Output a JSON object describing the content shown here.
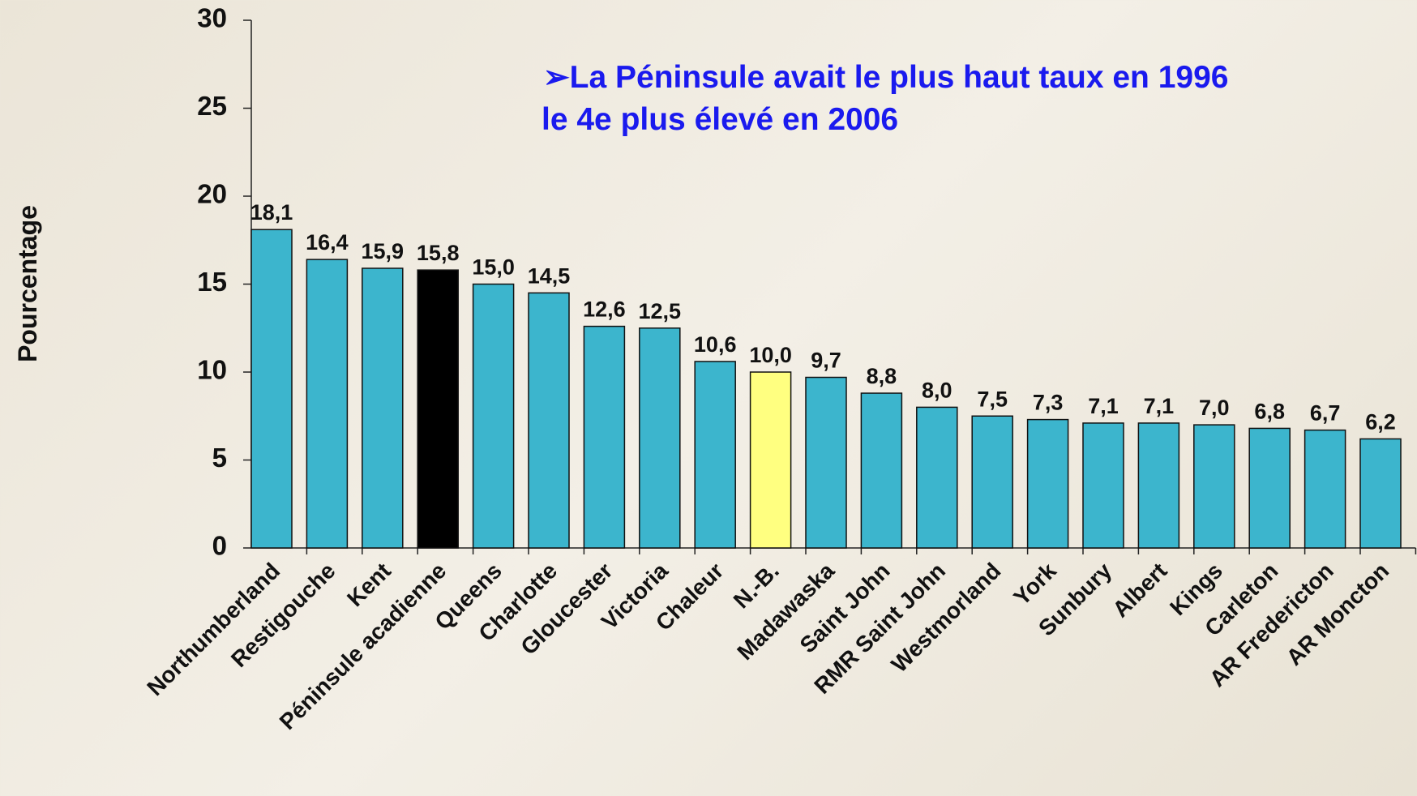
{
  "chart_data": {
    "type": "bar",
    "ylabel": "Pourcentage",
    "annotations": [
      "➢La Péninsule avait le plus haut taux en 1996",
      "le 4e plus élevé en 2006"
    ],
    "categories": [
      "Northumberland",
      "Restigouche",
      "Kent",
      "Péninsule acadienne",
      "Queens",
      "Charlotte",
      "Gloucester",
      "Victoria",
      "Chaleur",
      "N.-B.",
      "Madawaska",
      "Saint John",
      "RMR Saint John",
      "Westmorland",
      "York",
      "Sunbury",
      "Albert",
      "Kings",
      "Carleton",
      "AR Fredericton",
      "AR Moncton"
    ],
    "values": [
      18.1,
      16.4,
      15.9,
      15.8,
      15.0,
      14.5,
      12.6,
      12.5,
      10.6,
      10.0,
      9.7,
      8.8,
      8.0,
      7.5,
      7.3,
      7.1,
      7.1,
      7.0,
      6.8,
      6.7,
      6.2
    ],
    "value_labels": [
      "18,1",
      "16,4",
      "15,9",
      "15,8",
      "15,0",
      "14,5",
      "12,6",
      "12,5",
      "10,6",
      "10,0",
      "9,7",
      "8,8",
      "8,0",
      "7,5",
      "7,3",
      "7,1",
      "7,1",
      "7,0",
      "6,8",
      "6,7",
      "6,2"
    ],
    "colors": [
      "#3cb5cd",
      "#3cb5cd",
      "#3cb5cd",
      "#000000",
      "#3cb5cd",
      "#3cb5cd",
      "#3cb5cd",
      "#3cb5cd",
      "#3cb5cd",
      "#ffff80",
      "#3cb5cd",
      "#3cb5cd",
      "#3cb5cd",
      "#3cb5cd",
      "#3cb5cd",
      "#3cb5cd",
      "#3cb5cd",
      "#3cb5cd",
      "#3cb5cd",
      "#3cb5cd",
      "#3cb5cd"
    ],
    "ylim": [
      0,
      30
    ],
    "yticks": [
      0,
      5,
      10,
      15,
      20,
      25,
      30
    ],
    "grid": false
  }
}
